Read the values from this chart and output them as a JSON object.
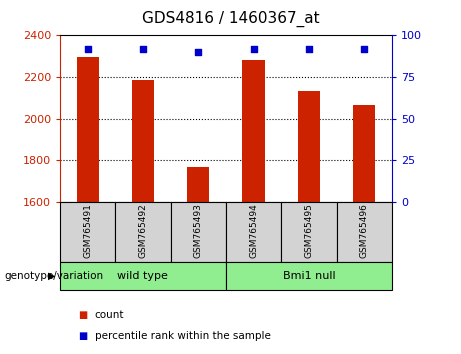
{
  "title": "GDS4816 / 1460367_at",
  "samples": [
    "GSM765491",
    "GSM765492",
    "GSM765493",
    "GSM765494",
    "GSM765495",
    "GSM765496"
  ],
  "counts": [
    2295,
    2185,
    1765,
    2280,
    2135,
    2065
  ],
  "percentiles": [
    92,
    92,
    90,
    92,
    92,
    92
  ],
  "ylim_left": [
    1600,
    2400
  ],
  "ylim_right": [
    0,
    100
  ],
  "yticks_left": [
    1600,
    1800,
    2000,
    2200,
    2400
  ],
  "yticks_right": [
    0,
    25,
    50,
    75,
    100
  ],
  "bar_color": "#cc2200",
  "dot_color": "#0000cc",
  "groups": [
    {
      "label": "wild type",
      "start": 0,
      "end": 3,
      "color": "#90ee90"
    },
    {
      "label": "Bmi1 null",
      "start": 3,
      "end": 6,
      "color": "#90ee90"
    }
  ],
  "genotype_label": "genotype/variation",
  "legend_count_label": "count",
  "legend_percentile_label": "percentile rank within the sample",
  "tick_bg_color": "#d3d3d3",
  "left_axis_color": "#cc2200",
  "right_axis_color": "#0000cc",
  "bar_width": 0.4
}
